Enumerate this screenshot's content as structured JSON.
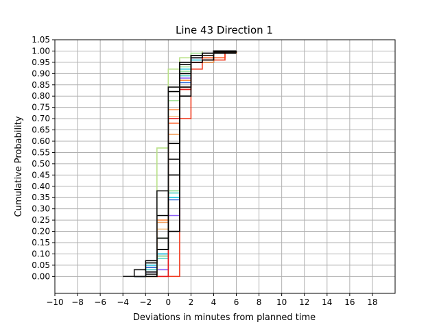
{
  "chart_data": {
    "type": "line",
    "step": "post",
    "title": "Line 43 Direction 1",
    "xlabel": "Deviations in minutes from planned time",
    "ylabel": "Cumulative Probability",
    "xlim": [
      -10,
      20
    ],
    "ylim": [
      -0.075,
      1.05
    ],
    "grid": true,
    "x_ticks": [
      -10,
      -8,
      -6,
      -4,
      -2,
      0,
      2,
      4,
      6,
      8,
      10,
      12,
      14,
      16,
      18
    ],
    "x_tick_labels": [
      "−10",
      "−8",
      "−6",
      "−4",
      "−2",
      "0",
      "2",
      "4",
      "6",
      "8",
      "10",
      "12",
      "14",
      "16",
      "18"
    ],
    "y_ticks": [
      0,
      0.05,
      0.1,
      0.15,
      0.2,
      0.25,
      0.3,
      0.35,
      0.4,
      0.45,
      0.5,
      0.55,
      0.6,
      0.65,
      0.7,
      0.75,
      0.8,
      0.85,
      0.9,
      0.95,
      1.0,
      1.05
    ],
    "y_tick_labels": [
      "0.00",
      "0.05",
      "0.10",
      "0.15",
      "0.20",
      "0.25",
      "0.30",
      "0.35",
      "0.40",
      "0.45",
      "0.50",
      "0.55",
      "0.60",
      "0.65",
      "0.70",
      "0.75",
      "0.80",
      "0.85",
      "0.90",
      "0.95",
      "1.00",
      "1.05"
    ],
    "series": [
      {
        "color": "#1a1a1a",
        "x": [
          -4,
          -3,
          -2,
          -1,
          0,
          1,
          2,
          4,
          6
        ],
        "y": [
          0.0,
          0.03,
          0.04,
          0.09,
          0.52,
          0.9,
          0.97,
          1.0,
          1.0
        ]
      },
      {
        "color": "#8b5cf6",
        "x": [
          -3,
          -2,
          -1,
          0,
          1,
          2,
          3,
          5
        ],
        "y": [
          0.0,
          0.02,
          0.03,
          0.27,
          0.88,
          0.97,
          0.99,
          1.0
        ]
      },
      {
        "color": "#3b6fd9",
        "x": [
          -3,
          -2,
          -1,
          0,
          1,
          2,
          4
        ],
        "y": [
          0.0,
          0.04,
          0.1,
          0.34,
          0.86,
          0.95,
          0.99
        ]
      },
      {
        "color": "#26c6da",
        "x": [
          -3,
          -2,
          -1,
          0,
          1,
          2,
          4
        ],
        "y": [
          0.0,
          0.05,
          0.1,
          0.35,
          0.92,
          0.96,
          1.0
        ]
      },
      {
        "color": "#4dd0c4",
        "x": [
          -3,
          -2,
          -1,
          0,
          1,
          2,
          4
        ],
        "y": [
          0.0,
          0.03,
          0.08,
          0.37,
          0.89,
          0.95,
          0.99
        ]
      },
      {
        "color": "#8bd68b",
        "x": [
          -2,
          -1,
          0,
          1,
          2,
          4
        ],
        "y": [
          0.0,
          0.09,
          0.38,
          0.91,
          0.98,
          1.0
        ]
      },
      {
        "color": "#b8e186",
        "x": [
          -2,
          -1,
          0,
          1,
          2,
          3
        ],
        "y": [
          0.0,
          0.57,
          0.92,
          0.97,
          0.99,
          1.0
        ]
      },
      {
        "color": "#a6e39a",
        "x": [
          -2,
          -1,
          0,
          1,
          2,
          4
        ],
        "y": [
          0.0,
          0.17,
          0.78,
          0.93,
          0.99,
          1.0
        ]
      },
      {
        "color": "#f6c48c",
        "x": [
          -2,
          -1,
          0,
          1,
          2,
          4,
          6
        ],
        "y": [
          0.0,
          0.21,
          0.71,
          0.9,
          0.98,
          0.995,
          1.0
        ]
      },
      {
        "color": "#f4a261",
        "x": [
          -2,
          -1,
          0,
          1,
          2,
          4,
          6
        ],
        "y": [
          0.0,
          0.24,
          0.63,
          0.84,
          0.98,
          0.99,
          1.0
        ]
      },
      {
        "color": "#ff8c42",
        "x": [
          -2,
          -1,
          0,
          1,
          2,
          4,
          6
        ],
        "y": [
          0.0,
          0.25,
          0.74,
          0.87,
          0.95,
          0.99,
          1.0
        ]
      },
      {
        "color": "#ff5a1f",
        "x": [
          -1,
          0,
          1,
          2,
          3,
          5
        ],
        "y": [
          0.0,
          0.68,
          0.83,
          0.95,
          0.97,
          1.0
        ]
      },
      {
        "color": "#f03b20",
        "x": [
          0,
          1,
          2,
          3,
          5
        ],
        "y": [
          0.0,
          0.7,
          0.92,
          0.96,
          0.99
        ]
      },
      {
        "color": "#e31a1c",
        "x": [
          -1,
          0,
          1,
          2,
          3
        ],
        "y": [
          0.0,
          0.7,
          0.83,
          0.95,
          0.98
        ]
      },
      {
        "color": "#000000",
        "x": [
          -3,
          -2,
          -1,
          0,
          1,
          2,
          3,
          4,
          6
        ],
        "y": [
          0.0,
          0.06,
          0.17,
          0.59,
          0.95,
          0.97,
          0.99,
          0.995,
          1.0
        ]
      },
      {
        "color": "#000000",
        "x": [
          -3,
          -2,
          -1,
          0,
          1,
          2,
          3,
          4,
          6
        ],
        "y": [
          0.0,
          0.01,
          0.12,
          0.2,
          0.9,
          0.98,
          0.99,
          1.0,
          1.0
        ]
      },
      {
        "color": "#000000",
        "x": [
          -3,
          -2,
          -1,
          0,
          1,
          2,
          3,
          4,
          6
        ],
        "y": [
          0.0,
          0.07,
          0.12,
          0.82,
          0.84,
          0.95,
          0.96,
          0.99,
          0.99
        ]
      },
      {
        "color": "#000000",
        "x": [
          -2,
          -1,
          0,
          1,
          2,
          3,
          4,
          6
        ],
        "y": [
          0.0,
          0.27,
          0.45,
          0.8,
          0.98,
          0.99,
          1.0,
          1.0
        ]
      },
      {
        "color": "#111111",
        "x": [
          -3,
          -2,
          -1,
          0,
          1,
          2,
          4
        ],
        "y": [
          0.0,
          0.02,
          0.38,
          0.84,
          0.94,
          0.98,
          1.0
        ]
      }
    ]
  }
}
